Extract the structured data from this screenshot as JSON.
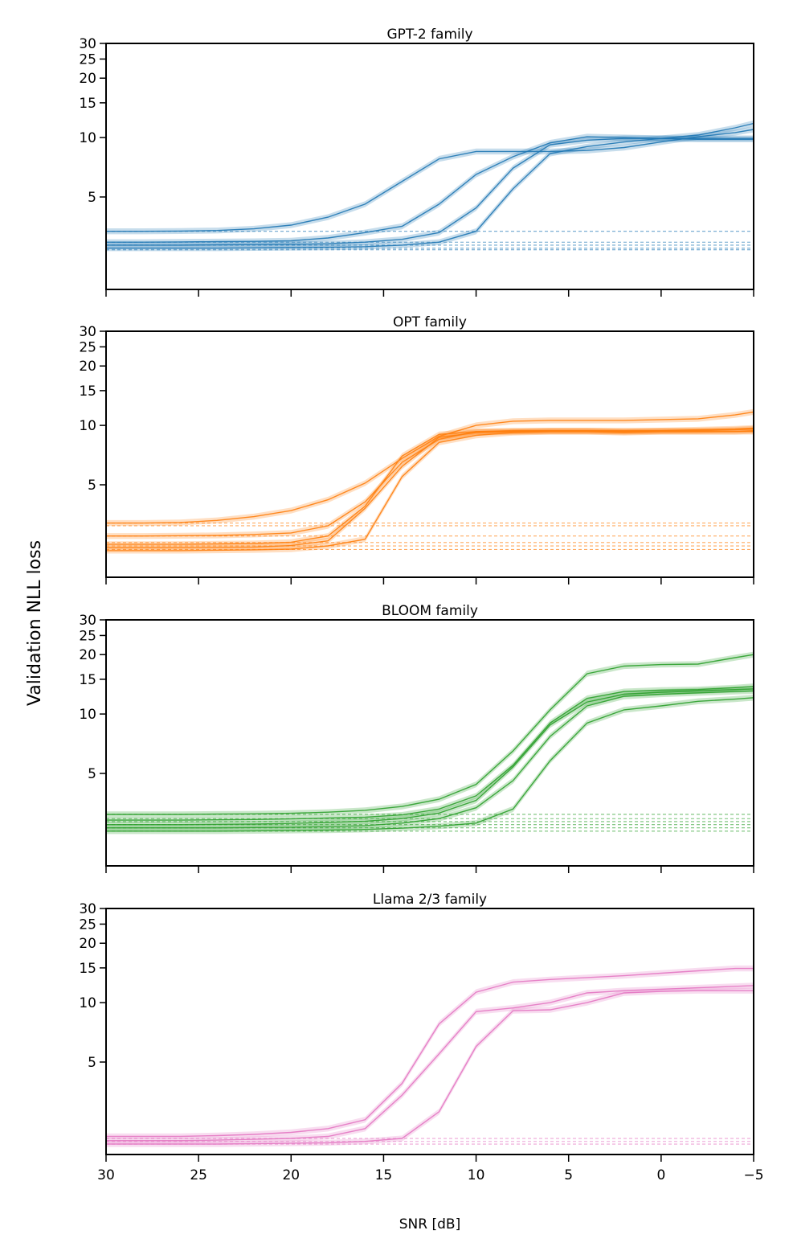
{
  "figure": {
    "ylabel": "Validation NLL loss",
    "xlabel": "SNR [dB]"
  },
  "chart_data": [
    {
      "type": "line",
      "title": "GPT-2 family",
      "color": "#1f77b4",
      "xlim": [
        30,
        -5
      ],
      "ylim": [
        1.7,
        30
      ],
      "yscale": "log",
      "xticks": [
        30,
        25,
        20,
        15,
        10,
        5,
        0,
        -5
      ],
      "xtick_labels": [
        "30",
        "25",
        "20",
        "15",
        "10",
        "5",
        "0",
        "−5"
      ],
      "yticks": [
        5,
        10,
        15,
        20,
        25,
        30
      ],
      "ytick_labels": [
        "5",
        "10",
        "15",
        "20",
        "25",
        "30"
      ],
      "x": [
        30,
        28,
        26,
        24,
        22,
        20,
        18,
        16,
        14,
        12,
        10,
        8,
        6,
        4,
        2,
        0,
        -2,
        -4,
        -5
      ],
      "series": [
        {
          "values": [
            3.35,
            3.35,
            3.36,
            3.38,
            3.45,
            3.6,
            3.95,
            4.6,
            6.0,
            7.8,
            8.5,
            8.5,
            8.5,
            8.6,
            8.9,
            9.5,
            10.1,
            10.6,
            11.0
          ]
        },
        {
          "values": [
            2.95,
            2.95,
            2.96,
            2.97,
            2.98,
            3.0,
            3.1,
            3.3,
            3.55,
            4.6,
            6.5,
            8.0,
            9.4,
            10.1,
            10.0,
            9.9,
            9.8,
            9.8,
            9.8
          ]
        },
        {
          "values": [
            2.85,
            2.85,
            2.85,
            2.86,
            2.87,
            2.88,
            2.9,
            2.95,
            3.05,
            3.3,
            4.4,
            7.0,
            9.2,
            9.7,
            9.9,
            9.9,
            9.9,
            9.9,
            9.9
          ]
        },
        {
          "values": [
            2.75,
            2.75,
            2.75,
            2.75,
            2.76,
            2.77,
            2.78,
            2.8,
            2.85,
            2.95,
            3.35,
            5.5,
            8.3,
            9.0,
            9.5,
            9.9,
            10.3,
            11.2,
            11.8
          ]
        }
      ],
      "baselines": [
        3.35,
        2.95,
        2.85,
        2.75,
        2.7
      ]
    },
    {
      "type": "line",
      "title": "OPT family",
      "color": "#ff7f0e",
      "xlim": [
        30,
        -5
      ],
      "ylim": [
        1.7,
        30
      ],
      "yscale": "log",
      "xticks": [
        30,
        25,
        20,
        15,
        10,
        5,
        0,
        -5
      ],
      "xtick_labels": [
        "30",
        "25",
        "20",
        "15",
        "10",
        "5",
        "0",
        "−5"
      ],
      "yticks": [
        5,
        10,
        15,
        20,
        25,
        30
      ],
      "ytick_labels": [
        "5",
        "10",
        "15",
        "20",
        "25",
        "30"
      ],
      "x": [
        30,
        28,
        26,
        24,
        22,
        20,
        18,
        16,
        14,
        12,
        10,
        8,
        6,
        4,
        2,
        0,
        -2,
        -4,
        -5
      ],
      "series": [
        {
          "values": [
            3.2,
            3.2,
            3.22,
            3.3,
            3.45,
            3.7,
            4.2,
            5.1,
            6.8,
            8.8,
            10.0,
            10.5,
            10.6,
            10.6,
            10.6,
            10.7,
            10.8,
            11.3,
            11.7
          ]
        },
        {
          "values": [
            2.75,
            2.75,
            2.76,
            2.77,
            2.8,
            2.85,
            3.1,
            4.1,
            6.5,
            8.5,
            9.3,
            9.4,
            9.4,
            9.4,
            9.3,
            9.4,
            9.5,
            9.6,
            9.7
          ]
        },
        {
          "values": [
            2.5,
            2.5,
            2.5,
            2.51,
            2.52,
            2.56,
            2.75,
            3.9,
            7.0,
            9.0,
            9.3,
            9.3,
            9.4,
            9.4,
            9.4,
            9.4,
            9.4,
            9.5,
            9.6
          ]
        },
        {
          "values": [
            2.4,
            2.4,
            2.4,
            2.41,
            2.42,
            2.46,
            2.6,
            3.8,
            6.2,
            8.7,
            9.2,
            9.3,
            9.3,
            9.3,
            9.2,
            9.3,
            9.3,
            9.3,
            9.4
          ]
        },
        {
          "values": [
            2.32,
            2.32,
            2.32,
            2.33,
            2.34,
            2.36,
            2.45,
            2.65,
            5.5,
            8.2,
            8.9,
            9.2,
            9.3,
            9.3,
            9.3,
            9.3,
            9.3,
            9.3,
            9.3
          ]
        }
      ],
      "baselines": [
        3.2,
        3.1,
        2.75,
        2.55,
        2.45,
        2.35
      ]
    },
    {
      "type": "line",
      "title": "BLOOM family",
      "color": "#2ca02c",
      "xlim": [
        30,
        -5
      ],
      "ylim": [
        1.7,
        30
      ],
      "yscale": "log",
      "xticks": [
        30,
        25,
        20,
        15,
        10,
        5,
        0,
        -5
      ],
      "xtick_labels": [
        "30",
        "25",
        "20",
        "15",
        "10",
        "5",
        "0",
        "−5"
      ],
      "yticks": [
        5,
        10,
        15,
        20,
        25,
        30
      ],
      "ytick_labels": [
        "5",
        "10",
        "15",
        "20",
        "25",
        "30"
      ],
      "x": [
        30,
        28,
        26,
        24,
        22,
        20,
        18,
        16,
        14,
        12,
        10,
        8,
        6,
        4,
        2,
        0,
        -2,
        -4,
        -5
      ],
      "series": [
        {
          "values": [
            3.1,
            3.1,
            3.1,
            3.11,
            3.12,
            3.14,
            3.18,
            3.25,
            3.4,
            3.7,
            4.4,
            6.5,
            10.5,
            16.0,
            17.5,
            17.8,
            17.9,
            19.3,
            20.0
          ]
        },
        {
          "values": [
            2.9,
            2.9,
            2.9,
            2.91,
            2.92,
            2.94,
            2.97,
            3.0,
            3.08,
            3.3,
            3.85,
            5.5,
            9.0,
            12.0,
            13.0,
            13.2,
            13.3,
            13.6,
            13.8
          ]
        },
        {
          "values": [
            2.75,
            2.75,
            2.75,
            2.76,
            2.77,
            2.79,
            2.82,
            2.86,
            2.95,
            3.15,
            3.65,
            5.4,
            8.8,
            11.5,
            12.6,
            12.9,
            13.1,
            13.3,
            13.4
          ]
        },
        {
          "values": [
            2.65,
            2.65,
            2.65,
            2.65,
            2.66,
            2.67,
            2.69,
            2.72,
            2.8,
            2.95,
            3.35,
            4.6,
            7.7,
            11.0,
            12.3,
            12.6,
            12.8,
            13.0,
            13.1
          ]
        },
        {
          "values": [
            2.55,
            2.55,
            2.55,
            2.55,
            2.56,
            2.57,
            2.58,
            2.6,
            2.64,
            2.7,
            2.8,
            3.3,
            5.8,
            9.0,
            10.5,
            11.0,
            11.6,
            11.9,
            12.1
          ]
        }
      ],
      "baselines": [
        3.1,
        2.95,
        2.85,
        2.75,
        2.65,
        2.55
      ]
    },
    {
      "type": "line",
      "title": "Llama 2/3 family",
      "color": "#e377c2",
      "xlim": [
        30,
        -5
      ],
      "ylim": [
        1.7,
        30
      ],
      "yscale": "log",
      "xticks": [
        30,
        25,
        20,
        15,
        10,
        5,
        0,
        -5
      ],
      "xtick_labels": [
        "30",
        "25",
        "20",
        "15",
        "10",
        "5",
        "0",
        "−5"
      ],
      "yticks": [
        5,
        10,
        15,
        20,
        25,
        30
      ],
      "ytick_labels": [
        "5",
        "10",
        "15",
        "20",
        "25",
        "30"
      ],
      "x": [
        30,
        28,
        26,
        24,
        22,
        20,
        18,
        16,
        14,
        12,
        10,
        8,
        6,
        4,
        2,
        0,
        -2,
        -4,
        -5
      ],
      "series": [
        {
          "values": [
            2.1,
            2.1,
            2.1,
            2.12,
            2.15,
            2.2,
            2.3,
            2.55,
            3.9,
            7.8,
            11.3,
            12.7,
            13.1,
            13.4,
            13.7,
            14.1,
            14.5,
            14.9,
            14.9
          ]
        },
        {
          "values": [
            2.0,
            2.0,
            2.0,
            2.01,
            2.03,
            2.05,
            2.1,
            2.3,
            3.4,
            5.5,
            9.0,
            9.4,
            10.0,
            11.2,
            11.5,
            11.7,
            11.9,
            12.1,
            12.2
          ]
        },
        {
          "values": [
            1.92,
            1.92,
            1.92,
            1.92,
            1.93,
            1.94,
            1.95,
            1.98,
            2.05,
            2.8,
            6.0,
            9.1,
            9.2,
            10.0,
            11.2,
            11.4,
            11.5,
            11.5,
            11.5
          ]
        }
      ],
      "baselines": [
        2.05,
        1.98,
        1.92
      ]
    }
  ]
}
